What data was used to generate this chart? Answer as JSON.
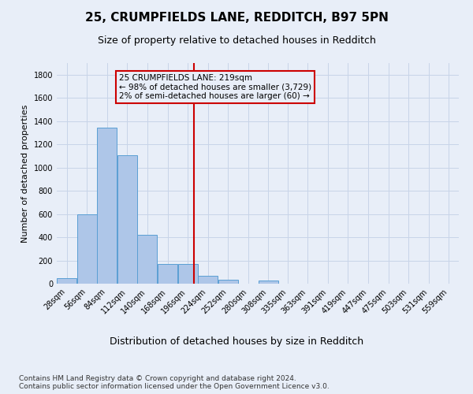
{
  "title_line1": "25, CRUMPFIELDS LANE, REDDITCH, B97 5PN",
  "title_line2": "Size of property relative to detached houses in Redditch",
  "xlabel": "Distribution of detached houses by size in Redditch",
  "ylabel": "Number of detached properties",
  "footnote": "Contains HM Land Registry data © Crown copyright and database right 2024.\nContains public sector information licensed under the Open Government Licence v3.0.",
  "annotation_line1": "25 CRUMPFIELDS LANE: 219sqm",
  "annotation_line2": "← 98% of detached houses are smaller (3,729)",
  "annotation_line3": "2% of semi-detached houses are larger (60) →",
  "property_value": 219,
  "bar_left_edges": [
    28,
    56,
    84,
    112,
    140,
    168,
    196,
    224,
    252,
    280,
    308,
    335,
    363,
    391,
    419,
    447,
    475,
    503,
    531,
    559
  ],
  "bar_heights": [
    50,
    597,
    1344,
    1106,
    420,
    168,
    168,
    65,
    35,
    0,
    30,
    0,
    0,
    0,
    0,
    0,
    0,
    0,
    0,
    0
  ],
  "bin_width": 28,
  "bar_color": "#aec6e8",
  "bar_edge_color": "#5a9fd4",
  "vline_color": "#cc0000",
  "vline_x": 219,
  "annotation_box_color": "#cc0000",
  "grid_color": "#c8d4e8",
  "background_color": "#e8eef8",
  "ylim": [
    0,
    1900
  ],
  "yticks": [
    0,
    200,
    400,
    600,
    800,
    1000,
    1200,
    1400,
    1600,
    1800
  ],
  "xlim": [
    28,
    587
  ],
  "title1_fontsize": 11,
  "title2_fontsize": 9,
  "ylabel_fontsize": 8,
  "xlabel_fontsize": 9,
  "tick_fontsize": 7,
  "annot_fontsize": 7.5,
  "footnote_fontsize": 6.5
}
